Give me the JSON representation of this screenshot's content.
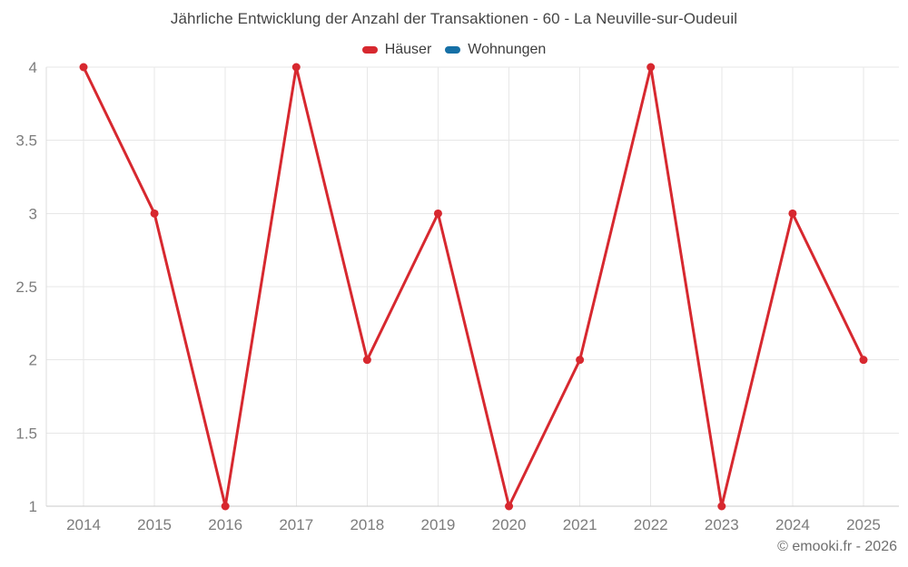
{
  "chart_data": {
    "type": "line",
    "title": "Jährliche Entwicklung der Anzahl der Transaktionen - 60 - La Neuville-sur-Oudeuil",
    "categories": [
      "2014",
      "2015",
      "2016",
      "2017",
      "2018",
      "2019",
      "2020",
      "2021",
      "2022",
      "2023",
      "2024",
      "2025"
    ],
    "series": [
      {
        "name": "Häuser",
        "color": "#d7282f",
        "values": [
          4,
          3,
          1,
          4,
          2,
          3,
          1,
          2,
          4,
          1,
          3,
          2
        ]
      },
      {
        "name": "Wohnungen",
        "color": "#1670a6",
        "values": []
      }
    ],
    "xlabel": "",
    "ylabel": "",
    "ylim": [
      1,
      4
    ],
    "yticks": [
      1,
      1.5,
      2,
      2.5,
      3,
      3.5,
      4
    ],
    "ytick_labels": [
      "1",
      "1.5",
      "2",
      "2.5",
      "3",
      "3.5",
      "4"
    ],
    "grid": true,
    "legend_position": "top"
  },
  "footer": {
    "copyright": "© emooki.fr - 2026"
  },
  "colors": {
    "background": "#ffffff",
    "grid": "#e7e7e7",
    "axis_line": "#c9c9c9",
    "y_axis_line": "#dedede",
    "tick_label": "#7c7c7c",
    "title": "#454545",
    "legend_label": "#3d3d3d",
    "haeuser": "#d7282f",
    "wohnungen": "#1670a6"
  }
}
